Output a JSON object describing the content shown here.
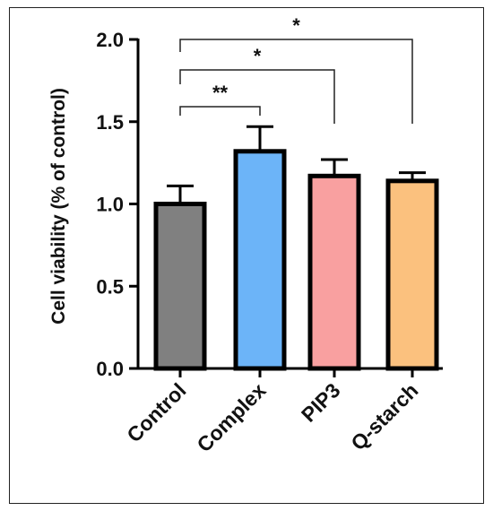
{
  "chart_data": {
    "type": "bar",
    "title": "",
    "xlabel": "",
    "ylabel": "Cell viability (% of control)",
    "ylim": [
      0.0,
      2.0
    ],
    "yticks": [
      0.0,
      0.5,
      1.0,
      1.5,
      2.0
    ],
    "ytick_labels": [
      "0.0",
      "0.5",
      "1.0",
      "1.5",
      "2.0"
    ],
    "categories": [
      "Control",
      "Complex",
      "PIP3",
      "Q-starch"
    ],
    "values": [
      1.0,
      1.32,
      1.17,
      1.14
    ],
    "errors": [
      0.11,
      0.15,
      0.1,
      0.05
    ],
    "colors": [
      "#808080",
      "#6cb4f8",
      "#f9a0a0",
      "#fbc17e"
    ],
    "significance": [
      {
        "from": "Control",
        "to": "Complex",
        "label": "**"
      },
      {
        "from": "Control",
        "to": "PIP3",
        "label": "*"
      },
      {
        "from": "Control",
        "to": "Q-starch",
        "label": "*"
      }
    ],
    "grid": false,
    "legend": "none"
  }
}
